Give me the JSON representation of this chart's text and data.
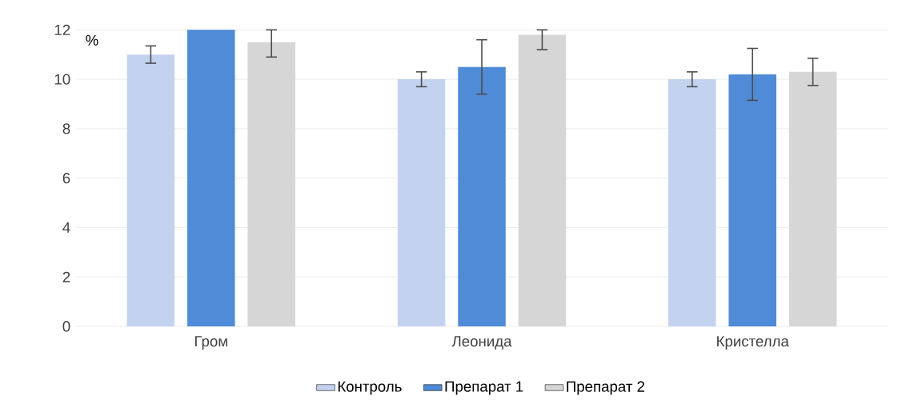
{
  "chart_data": {
    "type": "bar",
    "ylabel": "%",
    "categories": [
      "Гром",
      "Леонида",
      "Кристелла"
    ],
    "series": [
      {
        "name": "Контроль",
        "color": "#c3d3ef",
        "values": [
          11.0,
          10.0,
          10.0
        ],
        "errors": [
          0.35,
          0.3,
          0.3
        ]
      },
      {
        "name": "Препарат 1",
        "color": "#4f8bd6",
        "values": [
          12.0,
          10.5,
          10.2
        ],
        "errors": [
          null,
          1.1,
          1.05
        ]
      },
      {
        "name": "Препарат 2",
        "color": "#d6d6d6",
        "values": [
          11.5,
          11.8,
          10.3
        ],
        "errors": [
          [
            10.9,
            12
          ],
          [
            11.2,
            12
          ],
          0.55
        ]
      }
    ],
    "ylim": [
      0,
      12
    ],
    "yticks": [
      0,
      2,
      4,
      6,
      8,
      10,
      12
    ],
    "grid": "y",
    "legend": "bottom"
  }
}
